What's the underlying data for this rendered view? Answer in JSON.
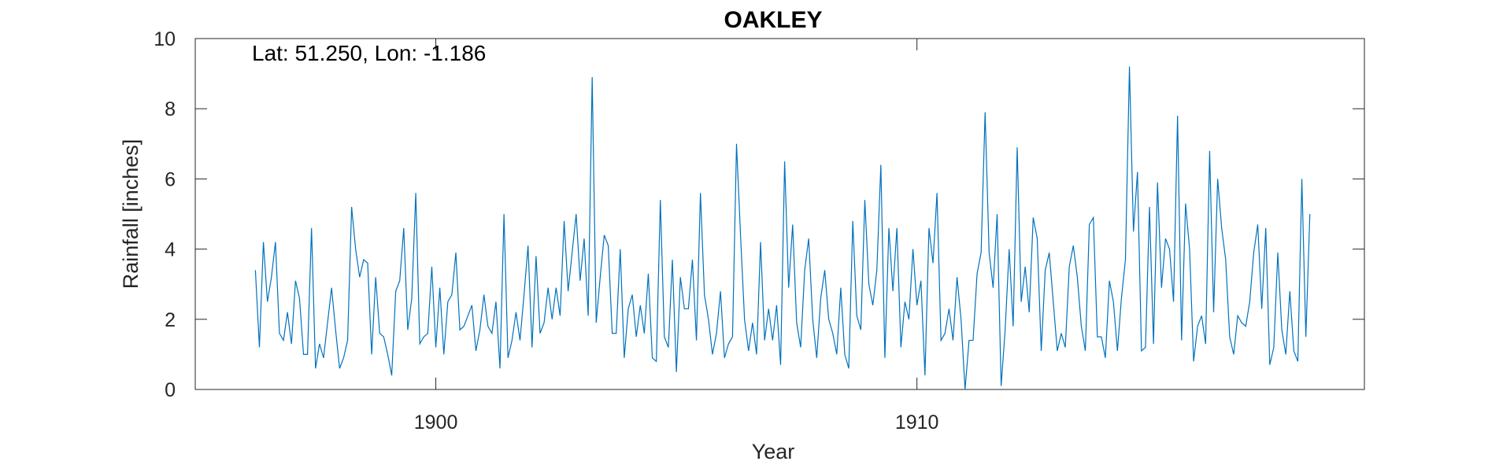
{
  "chart_data": {
    "type": "line",
    "title": "OAKLEY",
    "annotation": "Lat: 51.250, Lon: -1.186",
    "xlabel": "Year",
    "ylabel": "Rainfall [inches]",
    "xlim": [
      1895.0,
      1919.3
    ],
    "ylim": [
      0,
      10
    ],
    "xticks": [
      1900,
      1910
    ],
    "xtick_labels": [
      "1900",
      "1910"
    ],
    "yticks": [
      0,
      2,
      4,
      6,
      8,
      10
    ],
    "ytick_labels": [
      "0",
      "2",
      "4",
      "6",
      "8",
      "10"
    ],
    "grid": false,
    "series": [
      {
        "color": "#0072BD",
        "x_start": 1896.25,
        "x_step": 0.0833333,
        "values": [
          3.4,
          1.2,
          4.2,
          2.5,
          3.2,
          4.2,
          1.6,
          1.4,
          2.2,
          1.3,
          3.1,
          2.6,
          1.0,
          1.0,
          4.6,
          0.6,
          1.3,
          0.9,
          1.9,
          2.9,
          1.7,
          0.6,
          0.9,
          1.4,
          5.2,
          4.0,
          3.2,
          3.7,
          3.6,
          1.0,
          3.2,
          1.6,
          1.5,
          1.0,
          0.4,
          2.8,
          3.1,
          4.6,
          1.7,
          2.6,
          5.6,
          1.3,
          1.5,
          1.6,
          3.5,
          1.2,
          2.9,
          1.0,
          2.5,
          2.7,
          3.9,
          1.7,
          1.8,
          2.1,
          2.4,
          1.1,
          1.7,
          2.7,
          1.8,
          1.6,
          2.5,
          0.6,
          5.0,
          0.9,
          1.4,
          2.2,
          1.4,
          2.7,
          4.1,
          1.2,
          3.8,
          1.6,
          1.9,
          2.9,
          2.0,
          2.9,
          2.1,
          4.8,
          2.8,
          3.9,
          5.0,
          3.1,
          4.3,
          2.1,
          8.9,
          1.9,
          3.2,
          4.4,
          4.1,
          1.6,
          1.6,
          4.0,
          0.9,
          2.3,
          2.7,
          1.5,
          2.4,
          1.6,
          3.3,
          0.9,
          0.8,
          5.4,
          1.5,
          1.2,
          3.7,
          0.5,
          3.2,
          2.3,
          2.3,
          3.7,
          1.4,
          5.6,
          2.7,
          2.0,
          1.0,
          1.6,
          2.8,
          0.9,
          1.3,
          1.5,
          7.0,
          4.4,
          2.0,
          1.1,
          1.9,
          1.0,
          4.2,
          1.4,
          2.3,
          1.4,
          2.4,
          0.7,
          6.5,
          2.9,
          4.7,
          1.9,
          1.2,
          3.4,
          4.3,
          2.0,
          0.9,
          2.6,
          3.4,
          2.0,
          1.6,
          1.0,
          2.9,
          1.0,
          0.6,
          4.8,
          2.1,
          1.7,
          5.4,
          3.0,
          2.4,
          3.4,
          6.4,
          0.9,
          4.6,
          2.8,
          4.6,
          1.2,
          2.5,
          2.0,
          4.0,
          2.4,
          3.1,
          0.4,
          4.6,
          3.6,
          5.6,
          1.4,
          1.6,
          2.3,
          1.4,
          3.2,
          2.0,
          0.0,
          1.4,
          1.4,
          3.3,
          3.9,
          7.9,
          3.9,
          2.9,
          5.0,
          0.1,
          1.7,
          4.0,
          1.8,
          6.9,
          2.5,
          3.5,
          2.2,
          4.9,
          4.3,
          1.1,
          3.4,
          3.9,
          2.5,
          1.1,
          1.6,
          1.2,
          3.5,
          4.1,
          3.2,
          1.8,
          1.1,
          4.7,
          4.9,
          1.5,
          1.5,
          0.9,
          3.1,
          2.5,
          1.1,
          2.6,
          3.7,
          9.2,
          4.5,
          6.2,
          1.1,
          1.2,
          5.2,
          1.3,
          5.9,
          2.9,
          4.3,
          4.0,
          2.5,
          7.8,
          1.4,
          5.3,
          4.0,
          0.8,
          1.8,
          2.1,
          1.3,
          6.8,
          2.2,
          6.0,
          4.6,
          3.7,
          1.5,
          1.0,
          2.1,
          1.9,
          1.8,
          2.5,
          3.9,
          4.7,
          2.3,
          4.6,
          0.7,
          1.2,
          3.9,
          1.7,
          1.0,
          2.8,
          1.1,
          0.8,
          6.0,
          1.5,
          5.0
        ]
      }
    ]
  }
}
